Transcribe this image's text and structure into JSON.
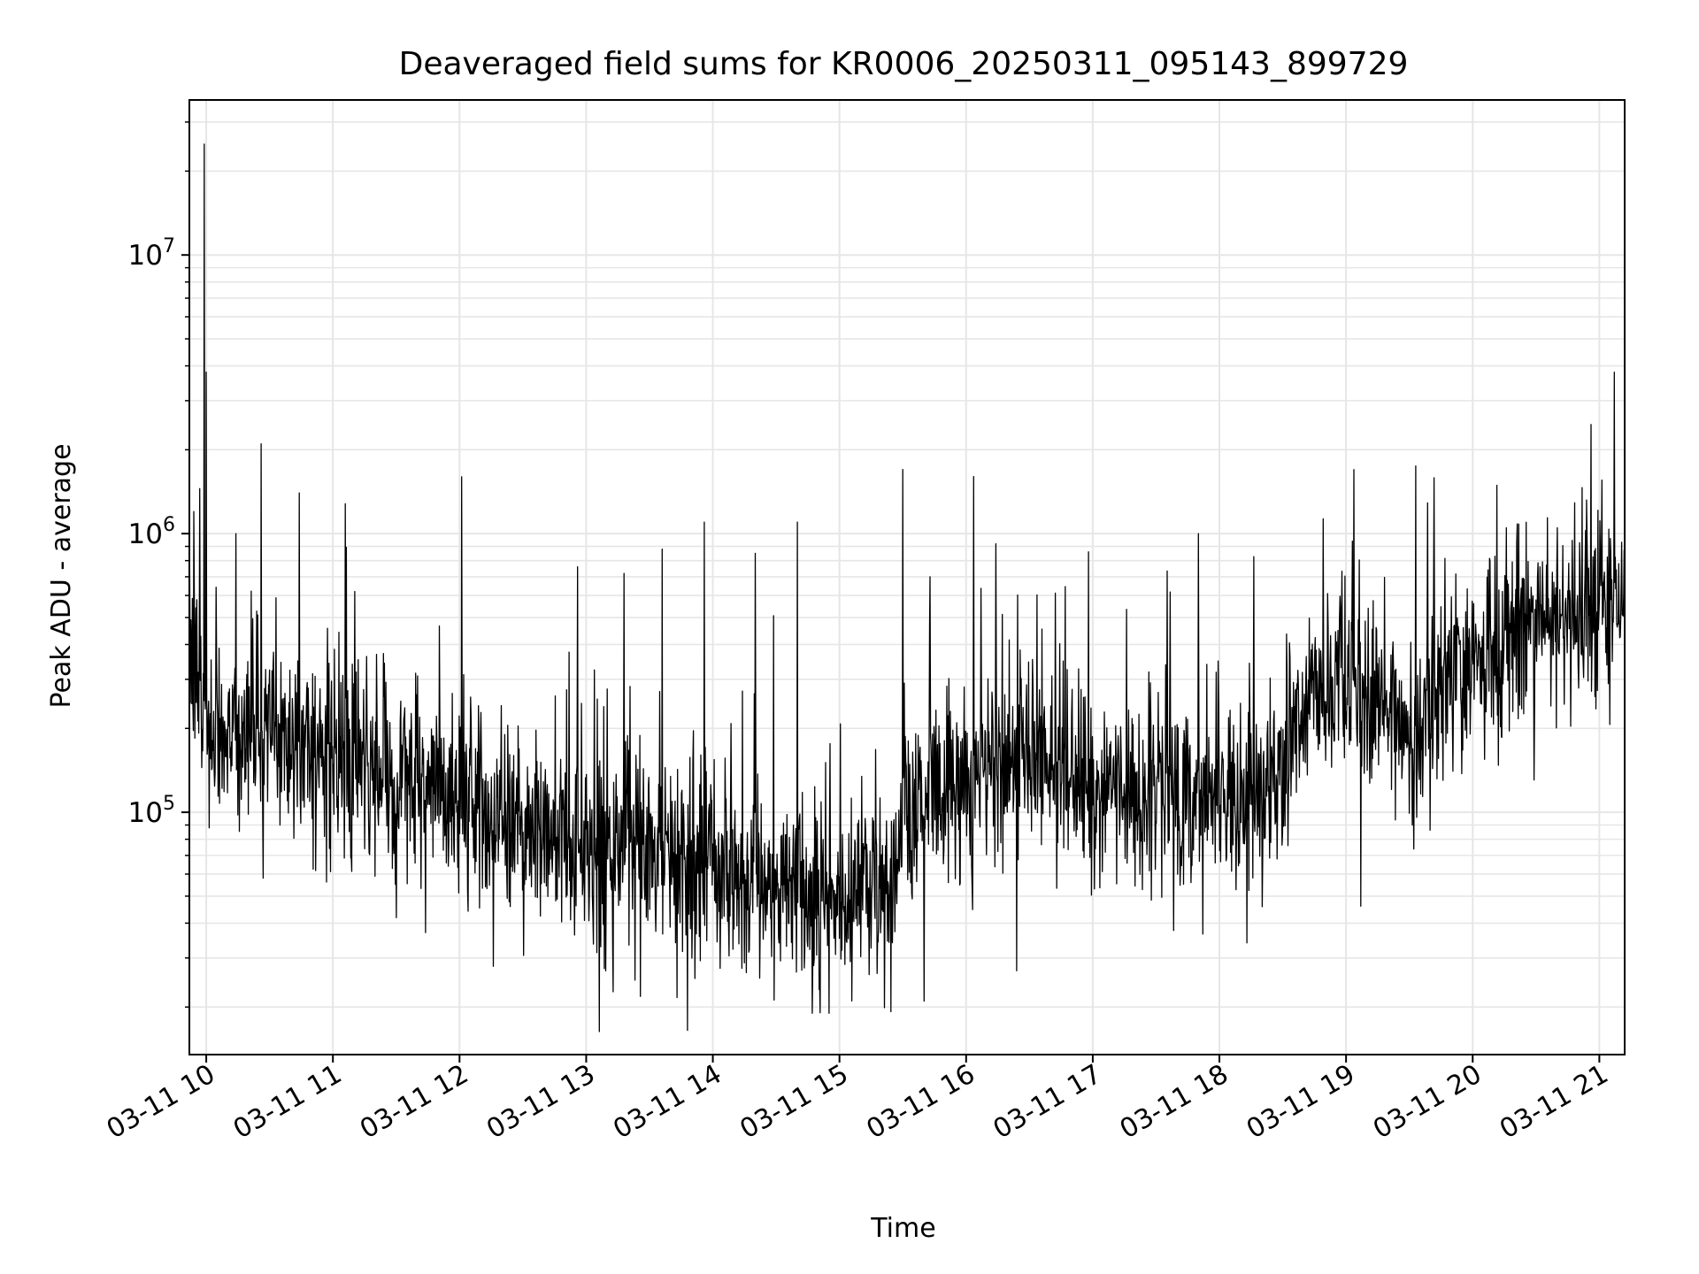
{
  "chart_data": {
    "type": "line",
    "title": "Deaveraged field sums for KR0006_20250311_095143_899729",
    "xlabel": "Time",
    "ylabel": "Peak ADU - average",
    "x_ticks": [
      "03-11 10",
      "03-11 11",
      "03-11 12",
      "03-11 13",
      "03-11 14",
      "03-11 15",
      "03-11 16",
      "03-11 17",
      "03-11 18",
      "03-11 19",
      "03-11 20",
      "03-11 21"
    ],
    "y_ticks": [
      {
        "base": "10",
        "exp": "5",
        "value": 100000
      },
      {
        "base": "10",
        "exp": "6",
        "value": 1000000
      },
      {
        "base": "10",
        "exp": "7",
        "value": 10000000
      }
    ],
    "x_range": [
      "2025-03-11 09:52",
      "2025-03-11 21:12"
    ],
    "y_range": [
      13500,
      36000000
    ],
    "y_scale": "log",
    "grid": "major and minor",
    "line_color": "#000000",
    "grid_color": "#e6e6e6",
    "series_profile": {
      "x": [
        "2025-03-11 09:52",
        "2025-03-11 10:00",
        "2025-03-11 10:30",
        "2025-03-11 11:00",
        "2025-03-11 11:30",
        "2025-03-11 12:00",
        "2025-03-11 12:30",
        "2025-03-11 13:00",
        "2025-03-11 13:30",
        "2025-03-11 14:00",
        "2025-03-11 14:30",
        "2025-03-11 15:00",
        "2025-03-11 15:25",
        "2025-03-11 15:30",
        "2025-03-11 16:00",
        "2025-03-11 16:30",
        "2025-03-11 17:00",
        "2025-03-11 17:30",
        "2025-03-11 18:00",
        "2025-03-11 18:30",
        "2025-03-11 18:35",
        "2025-03-11 19:00",
        "2025-03-11 19:30",
        "2025-03-11 20:00",
        "2025-03-11 20:30",
        "2025-03-11 21:00",
        "2025-03-11 21:12"
      ],
      "median": [
        400000,
        200000,
        200000,
        150000,
        130000,
        110000,
        90000,
        75000,
        70000,
        65000,
        55000,
        50000,
        50000,
        110000,
        130000,
        160000,
        120000,
        120000,
        120000,
        120000,
        220000,
        280000,
        200000,
        350000,
        450000,
        550000,
        600000
      ]
    },
    "spikes": [
      {
        "x": "2025-03-11 09:54",
        "y": 1200000
      },
      {
        "x": "2025-03-11 09:57",
        "y": 1450000
      },
      {
        "x": "2025-03-11 09:59",
        "y": 25000000
      },
      {
        "x": "2025-03-11 10:00",
        "y": 3800000
      },
      {
        "x": "2025-03-11 10:14",
        "y": 1000000
      },
      {
        "x": "2025-03-11 10:26",
        "y": 2100000
      },
      {
        "x": "2025-03-11 10:44",
        "y": 1400000
      },
      {
        "x": "2025-03-11 11:06",
        "y": 1280000
      },
      {
        "x": "2025-03-11 12:01",
        "y": 1600000
      },
      {
        "x": "2025-03-11 12:56",
        "y": 760000
      },
      {
        "x": "2025-03-11 13:18",
        "y": 720000
      },
      {
        "x": "2025-03-11 13:36",
        "y": 880000
      },
      {
        "x": "2025-03-11 13:56",
        "y": 1100000
      },
      {
        "x": "2025-03-11 14:20",
        "y": 850000
      },
      {
        "x": "2025-03-11 14:40",
        "y": 1100000
      },
      {
        "x": "2025-03-11 15:30",
        "y": 1700000
      },
      {
        "x": "2025-03-11 15:43",
        "y": 700000
      },
      {
        "x": "2025-03-11 16:14",
        "y": 920000
      },
      {
        "x": "2025-03-11 16:58",
        "y": 860000
      },
      {
        "x": "2025-03-11 17:50",
        "y": 1000000
      },
      {
        "x": "2025-03-11 19:03",
        "y": 940000
      },
      {
        "x": "2025-03-11 19:33",
        "y": 1750000
      },
      {
        "x": "2025-03-11 20:16",
        "y": 1050000
      },
      {
        "x": "2025-03-11 20:40",
        "y": 1050000
      },
      {
        "x": "2025-03-11 20:54",
        "y": 1320000
      },
      {
        "x": "2025-03-11 21:07",
        "y": 3800000
      }
    ],
    "dips": [
      {
        "x": "2025-03-11 10:27",
        "y": 58000
      },
      {
        "x": "2025-03-11 11:44",
        "y": 37000
      },
      {
        "x": "2025-03-11 12:16",
        "y": 28000
      },
      {
        "x": "2025-03-11 13:48",
        "y": 16500
      },
      {
        "x": "2025-03-11 14:47",
        "y": 19000
      },
      {
        "x": "2025-03-11 14:55",
        "y": 19000
      },
      {
        "x": "2025-03-11 15:40",
        "y": 21000
      },
      {
        "x": "2025-03-11 16:24",
        "y": 27000
      },
      {
        "x": "2025-03-11 18:13",
        "y": 34000
      },
      {
        "x": "2025-03-11 19:07",
        "y": 46000
      }
    ]
  }
}
